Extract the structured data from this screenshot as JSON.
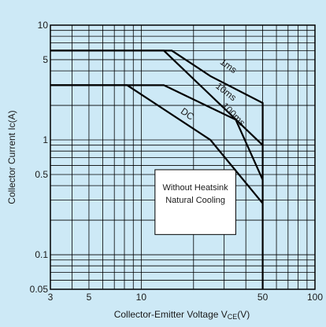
{
  "chart_data": {
    "type": "line",
    "xscale": "log",
    "yscale": "log",
    "xlim": [
      3,
      100
    ],
    "ylim": [
      0.05,
      10
    ],
    "grid": true,
    "xlabel": "Collector-Emitter Voltage VCE(V)",
    "xlabel_main": "Collector-Emitter Voltage V",
    "xlabel_sub": "CE",
    "xlabel_unit": "(V)",
    "ylabel": "Collector Current Ic(A)",
    "x_ticks": [
      {
        "value": 3,
        "label": "3"
      },
      {
        "value": 5,
        "label": "5"
      },
      {
        "value": 10,
        "label": "10"
      },
      {
        "value": 50,
        "label": "50"
      },
      {
        "value": 100,
        "label": "100"
      }
    ],
    "y_ticks": [
      {
        "value": 0.05,
        "label": "0.05"
      },
      {
        "value": 0.1,
        "label": "0.1"
      },
      {
        "value": 0.5,
        "label": "0.5"
      },
      {
        "value": 1,
        "label": "1"
      },
      {
        "value": 5,
        "label": "5"
      },
      {
        "value": 10,
        "label": "10"
      }
    ],
    "series": [
      {
        "name": "1ms",
        "x": [
          3,
          15,
          25,
          50,
          50
        ],
        "y": [
          6,
          6,
          3.6,
          2.1,
          0.05
        ]
      },
      {
        "name": "10ms",
        "x": [
          3,
          13.5,
          50
        ],
        "y": [
          6,
          6,
          0.9
        ]
      },
      {
        "name": "100ms",
        "x": [
          3,
          13.5,
          35,
          50
        ],
        "y": [
          3,
          3,
          1.5,
          0.45
        ]
      },
      {
        "name": "DC",
        "x": [
          3,
          8.3,
          25,
          50
        ],
        "y": [
          3,
          3,
          1,
          0.28
        ]
      }
    ],
    "curve_labels": [
      {
        "text": "1ms",
        "x": 31,
        "y": 4.2,
        "rotate": 36
      },
      {
        "text": "10ms",
        "x": 30,
        "y": 2.5,
        "rotate": 38
      },
      {
        "text": "100ms",
        "x": 33,
        "y": 1.6,
        "rotate": 45
      },
      {
        "text": "DC",
        "x": 18,
        "y": 1.6,
        "rotate": 35
      }
    ],
    "annotation": [
      "Without Heatsink",
      "Natural Cooling"
    ]
  }
}
